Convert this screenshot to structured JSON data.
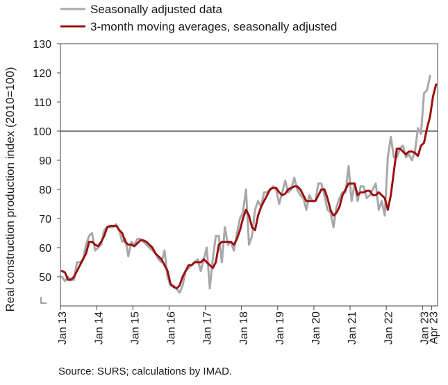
{
  "source": "Source: SURS; calculations by IMAD.",
  "chart_data": {
    "type": "line",
    "title": "",
    "ylabel": "Real construction production index (2010=100)",
    "xlabel": "",
    "ylim": [
      40,
      130
    ],
    "y_ticks": [
      50,
      60,
      70,
      80,
      90,
      100,
      110,
      120,
      130
    ],
    "y_tick_labels": [
      "50",
      "60",
      "70",
      "80",
      "90",
      "100",
      "110",
      "120",
      "130"
    ],
    "x_tick_labels": [
      "Jan 13",
      "Jan 14",
      "Jan 15",
      "Jan 16",
      "Jan 17",
      "Jan 18",
      "Jan 19",
      "Jan 20",
      "Jan 21",
      "Jan 22",
      "Jan 23",
      "Apr 23"
    ],
    "x_tick_months": [
      0,
      12,
      24,
      36,
      48,
      60,
      72,
      84,
      96,
      108,
      120,
      123
    ],
    "reference_line": 100,
    "axis_break": true,
    "grid": false,
    "legend_position": "top",
    "colors": {
      "seasonal": "#a6a8ab",
      "moving_avg": "#9b1010",
      "reference": "#333333"
    },
    "series": [
      {
        "name": "Seasonally adjusted data",
        "values": [
          50,
          48.5,
          50,
          49,
          49,
          55,
          55,
          56,
          61,
          64,
          65,
          59,
          60,
          61,
          66,
          67,
          67,
          67,
          68,
          66,
          62,
          63,
          57,
          62,
          61,
          63,
          63,
          62,
          61,
          60,
          59,
          58,
          56,
          55,
          59,
          50,
          47,
          47,
          46,
          44.5,
          47,
          52,
          53,
          54,
          55,
          56,
          52,
          56,
          60,
          46,
          56,
          64,
          64,
          55,
          67,
          61,
          62,
          59,
          65,
          70,
          72,
          80,
          61,
          64,
          73,
          76,
          74,
          79,
          79,
          80,
          81,
          80,
          75,
          79,
          83,
          79,
          80,
          84,
          80,
          78,
          77,
          73,
          78,
          76,
          76,
          82,
          82,
          78,
          73,
          72,
          67,
          74,
          77,
          79,
          79,
          88,
          76,
          82,
          76,
          81,
          81,
          77,
          78,
          80,
          82,
          73,
          76,
          71,
          91,
          98,
          91,
          91,
          94,
          95,
          91,
          92,
          90,
          93,
          101,
          99,
          113,
          114,
          119
        ],
        "start": "Jan 13"
      },
      {
        "name": "3-month moving averages, seasonally adjusted",
        "values": [
          52,
          51.5,
          49,
          49,
          50,
          52,
          54,
          56,
          58,
          62,
          62,
          61,
          60.5,
          62,
          64,
          67,
          67.5,
          67.5,
          67.5,
          66,
          65,
          62,
          61,
          61,
          60.5,
          61.5,
          62.5,
          62.5,
          62,
          61,
          60,
          58,
          57,
          56,
          54,
          52,
          47.5,
          46.5,
          46,
          47,
          50,
          52,
          54,
          54,
          55,
          55,
          55,
          56,
          55,
          54,
          53,
          55,
          61,
          62,
          62,
          62,
          62,
          61,
          63,
          66,
          70,
          73,
          71,
          67,
          66,
          71,
          74,
          76,
          78,
          80,
          80.5,
          80.5,
          79,
          78,
          78.5,
          80,
          80.5,
          81,
          81,
          80,
          78,
          76,
          76,
          76,
          76,
          78,
          80,
          80,
          77,
          73,
          71,
          72,
          74,
          78,
          80,
          82,
          82,
          82,
          78,
          79,
          79,
          79.5,
          79.5,
          78,
          78,
          79,
          78,
          77,
          73,
          78,
          86,
          94,
          94,
          93,
          92,
          93,
          93,
          92.5,
          91.5,
          95,
          96,
          101,
          105,
          112,
          116
        ],
        "start": "Jan 13"
      }
    ]
  }
}
